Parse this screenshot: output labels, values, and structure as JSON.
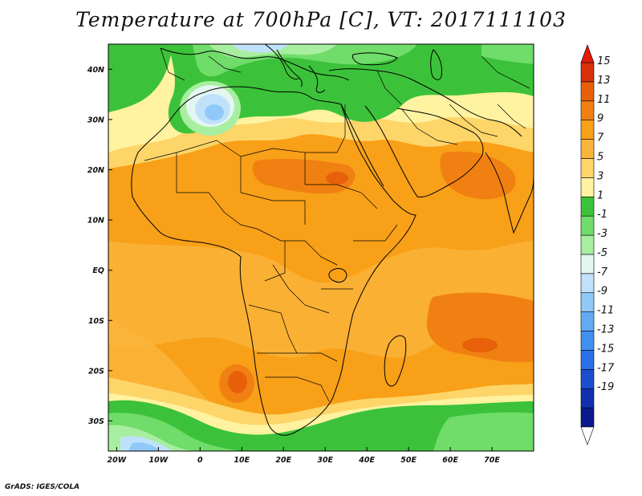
{
  "title": "Temperature at 700hPa [C], VT: 2017111103",
  "credit": "GrADS: IGES/COLA",
  "map": {
    "lon_range": [
      -22,
      80
    ],
    "lat_range": [
      -36,
      45
    ],
    "lat_ticks": [
      {
        "lat": 40,
        "label": "40N"
      },
      {
        "lat": 30,
        "label": "30N"
      },
      {
        "lat": 20,
        "label": "20N"
      },
      {
        "lat": 10,
        "label": "10N"
      },
      {
        "lat": 0,
        "label": "EQ"
      },
      {
        "lat": -10,
        "label": "10S"
      },
      {
        "lat": -20,
        "label": "20S"
      },
      {
        "lat": -30,
        "label": "30S"
      }
    ],
    "lon_ticks": [
      {
        "lon": -20,
        "label": "20W"
      },
      {
        "lon": -10,
        "label": "10W"
      },
      {
        "lon": 0,
        "label": "0"
      },
      {
        "lon": 10,
        "label": "10E"
      },
      {
        "lon": 20,
        "label": "20E"
      },
      {
        "lon": 30,
        "label": "30E"
      },
      {
        "lon": 40,
        "label": "40E"
      },
      {
        "lon": 50,
        "label": "50E"
      },
      {
        "lon": 60,
        "label": "60E"
      },
      {
        "lon": 70,
        "label": "70E"
      }
    ]
  },
  "colorbar": {
    "labels": [
      "15",
      "13",
      "11",
      "9",
      "7",
      "5",
      "3",
      "1",
      "-1",
      "-3",
      "-5",
      "-7",
      "-9",
      "-11",
      "-13",
      "-15",
      "-17",
      "-19"
    ],
    "colors": [
      "#ffffff",
      "#0a1a8c",
      "#1030b0",
      "#1a4fd0",
      "#2a70e8",
      "#4090f0",
      "#63aaf2",
      "#90c8f8",
      "#bfe2fa",
      "#e4f6f2",
      "#a8eea0",
      "#70dc6a",
      "#3cc23a",
      "#fff2a0",
      "#fdd568",
      "#fbb53c",
      "#f8a018",
      "#f08012",
      "#e8600a",
      "#d8300a",
      "#e01a0a"
    ]
  }
}
